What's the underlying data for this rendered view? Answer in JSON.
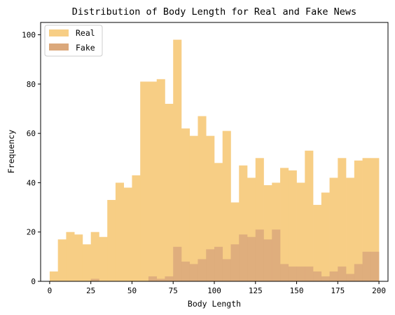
{
  "chart_data": {
    "type": "bar",
    "title": "Distribution of Body Length for Real and Fake News",
    "xlabel": "Body Length",
    "ylabel": "Frequency",
    "xlim": [
      -5.5,
      205.5
    ],
    "ylim": [
      0,
      105
    ],
    "xticks": [
      0,
      25,
      50,
      75,
      100,
      125,
      150,
      175,
      200
    ],
    "yticks": [
      0,
      20,
      40,
      60,
      80,
      100
    ],
    "bin_start": 0,
    "bin_width": 5,
    "grid": false,
    "legend_position": "top-left",
    "series": [
      {
        "name": "Real",
        "color": "#f7ce85",
        "values": [
          4,
          17,
          20,
          19,
          15,
          20,
          18,
          33,
          40,
          38,
          43,
          81,
          81,
          82,
          72,
          98,
          62,
          59,
          67,
          59,
          48,
          61,
          32,
          47,
          42,
          50,
          39,
          40,
          46,
          45,
          40,
          53,
          31,
          36,
          42,
          50,
          42,
          49,
          50,
          50
        ]
      },
      {
        "name": "Fake",
        "color": "#dba87b",
        "values": [
          0,
          0,
          0,
          0,
          0,
          1,
          0,
          0,
          0,
          0,
          0,
          0,
          2,
          1,
          2,
          14,
          8,
          7,
          9,
          13,
          14,
          9,
          15,
          19,
          18,
          21,
          17,
          21,
          7,
          6,
          6,
          6,
          4,
          2,
          4,
          6,
          3,
          7,
          12,
          12
        ]
      }
    ]
  }
}
